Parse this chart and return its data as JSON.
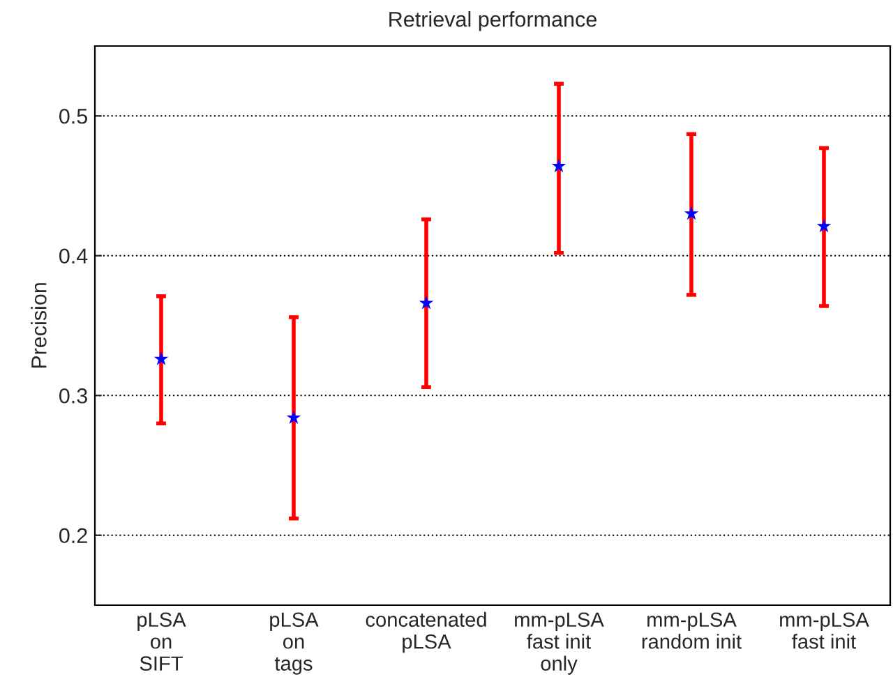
{
  "chart_data": {
    "type": "scatter",
    "title": "Retrieval performance",
    "ylabel": "Precision",
    "categories": [
      "pLSA\non\nSIFT",
      "pLSA\non\ntags",
      "concatenated\npLSA",
      "mm-pLSA\nfast init\nonly",
      "mm-pLSA\nrandom init",
      "mm-pLSA\nfast init"
    ],
    "series": [
      {
        "color": "#0000ff",
        "values": [
          0.326,
          0.284,
          0.366,
          0.464,
          0.43,
          0.421
        ],
        "errors": [
          [
            0.28,
            0.371
          ],
          [
            0.212,
            0.356
          ],
          [
            0.306,
            0.426
          ],
          [
            0.402,
            0.523
          ],
          [
            0.372,
            0.487
          ],
          [
            0.364,
            0.477
          ]
        ]
      }
    ],
    "ylim": [
      0.15,
      0.55
    ],
    "yticks": [
      0.2,
      0.3,
      0.4,
      0.5
    ],
    "grid": "y",
    "marker": "star",
    "legend": false
  }
}
